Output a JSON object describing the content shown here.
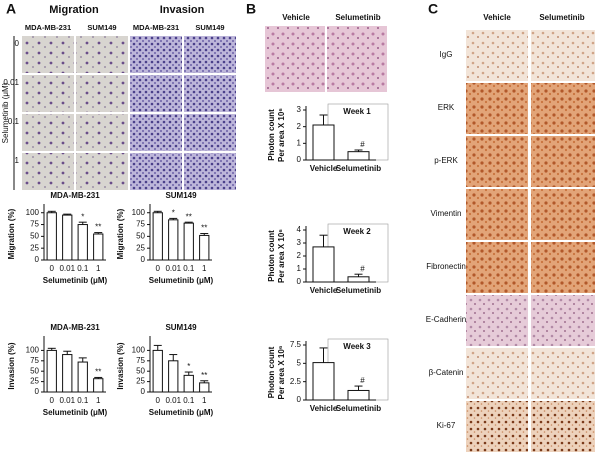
{
  "panels": {
    "A": {
      "label": "A",
      "headers": [
        "Migration",
        "Invasion"
      ],
      "columns": [
        "MDA-MB-231",
        "SUM149",
        "MDA-MB-231",
        "SUM149"
      ],
      "dose_axis": "Selumetinib (μM)",
      "doses": [
        "0",
        "0.01",
        "0.1",
        "1"
      ]
    },
    "B": {
      "label": "B",
      "columns": [
        "Vehicle",
        "Selumetinib"
      ]
    },
    "C": {
      "label": "C",
      "columns": [
        "Vehicle",
        "Selumetinib"
      ],
      "rows": [
        "IgG",
        "ERK",
        "p-ERK",
        "Vimentin",
        "Fibronectin",
        "E-Cadherin",
        "β-Catenin",
        "Ki-67"
      ]
    }
  },
  "chart_data": [
    {
      "type": "bar",
      "title": "MDA-MB-231",
      "ylabel": [
        "Migration (%)"
      ],
      "xlabel": "Selumetinib (μM)",
      "categories": [
        "0",
        "0.01",
        "0.1",
        "1"
      ],
      "values": [
        100,
        95,
        75,
        55
      ],
      "errors": [
        3,
        2,
        5,
        3
      ],
      "annotations": [
        null,
        null,
        "*",
        "**"
      ],
      "ylim": [
        0,
        110
      ],
      "yticks": [
        0,
        25,
        50,
        75,
        100
      ],
      "color": "#ffffff"
    },
    {
      "type": "bar",
      "title": "SUM149",
      "ylabel": [
        "Migration (%)"
      ],
      "xlabel": "Selumetinib (μM)",
      "categories": [
        "0",
        "0.01",
        "0.1",
        "1"
      ],
      "values": [
        100,
        85,
        78,
        52
      ],
      "errors": [
        3,
        3,
        2,
        4
      ],
      "annotations": [
        null,
        "*",
        "**",
        "**"
      ],
      "ylim": [
        0,
        110
      ],
      "yticks": [
        0,
        25,
        50,
        75,
        100
      ],
      "color": "#ffffff"
    },
    {
      "type": "bar",
      "title": "MDA-MB-231",
      "ylabel": [
        "Invasion (%)"
      ],
      "xlabel": "Selumetinib (μM)",
      "categories": [
        "0",
        "0.01",
        "0.1",
        "1"
      ],
      "values": [
        100,
        90,
        72,
        32
      ],
      "errors": [
        5,
        8,
        10,
        3
      ],
      "annotations": [
        null,
        null,
        null,
        "**"
      ],
      "ylim": [
        0,
        125
      ],
      "yticks": [
        0,
        25,
        50,
        75,
        100
      ],
      "color": "#ffffff"
    },
    {
      "type": "bar",
      "title": "SUM149",
      "ylabel": [
        "Invasion (%)"
      ],
      "xlabel": "Selumetinib (μM)",
      "categories": [
        "0",
        "0.01",
        "0.1",
        "1"
      ],
      "values": [
        100,
        75,
        40,
        22
      ],
      "errors": [
        12,
        15,
        8,
        5
      ],
      "annotations": [
        null,
        null,
        "*",
        "**"
      ],
      "ylim": [
        0,
        125
      ],
      "yticks": [
        0,
        25,
        50,
        75,
        100
      ],
      "color": "#ffffff"
    },
    {
      "type": "bar",
      "title": "Week 1",
      "ylabel": [
        "Photon count",
        "Per area X 10⁶"
      ],
      "categories": [
        "Vehicle",
        "Selumetinib"
      ],
      "values": [
        2.1,
        0.5
      ],
      "errors": [
        0.6,
        0.1
      ],
      "annotations": [
        null,
        "#"
      ],
      "ylim": [
        0,
        3
      ],
      "yticks": [
        0,
        1,
        2,
        3
      ],
      "color": "#ffffff"
    },
    {
      "type": "bar",
      "title": "Week 2",
      "ylabel": [
        "Photon count",
        "Per area X 10⁶"
      ],
      "categories": [
        "Vehicle",
        "Selumetinib"
      ],
      "values": [
        2.7,
        0.4
      ],
      "errors": [
        0.9,
        0.2
      ],
      "annotations": [
        null,
        "#"
      ],
      "ylim": [
        0,
        4
      ],
      "yticks": [
        0,
        1,
        2,
        3,
        4
      ],
      "color": "#ffffff"
    },
    {
      "type": "bar",
      "title": "Week 3",
      "ylabel": [
        "Photon count",
        "Per area X 10⁶"
      ],
      "categories": [
        "Vehicle",
        "Selumetinib"
      ],
      "values": [
        5.1,
        1.3
      ],
      "errors": [
        2,
        0.6
      ],
      "annotations": [
        null,
        "#"
      ],
      "ylim": [
        0,
        7.5
      ],
      "yticks": [
        0,
        2.5,
        5,
        7.5
      ],
      "color": "#ffffff"
    }
  ]
}
